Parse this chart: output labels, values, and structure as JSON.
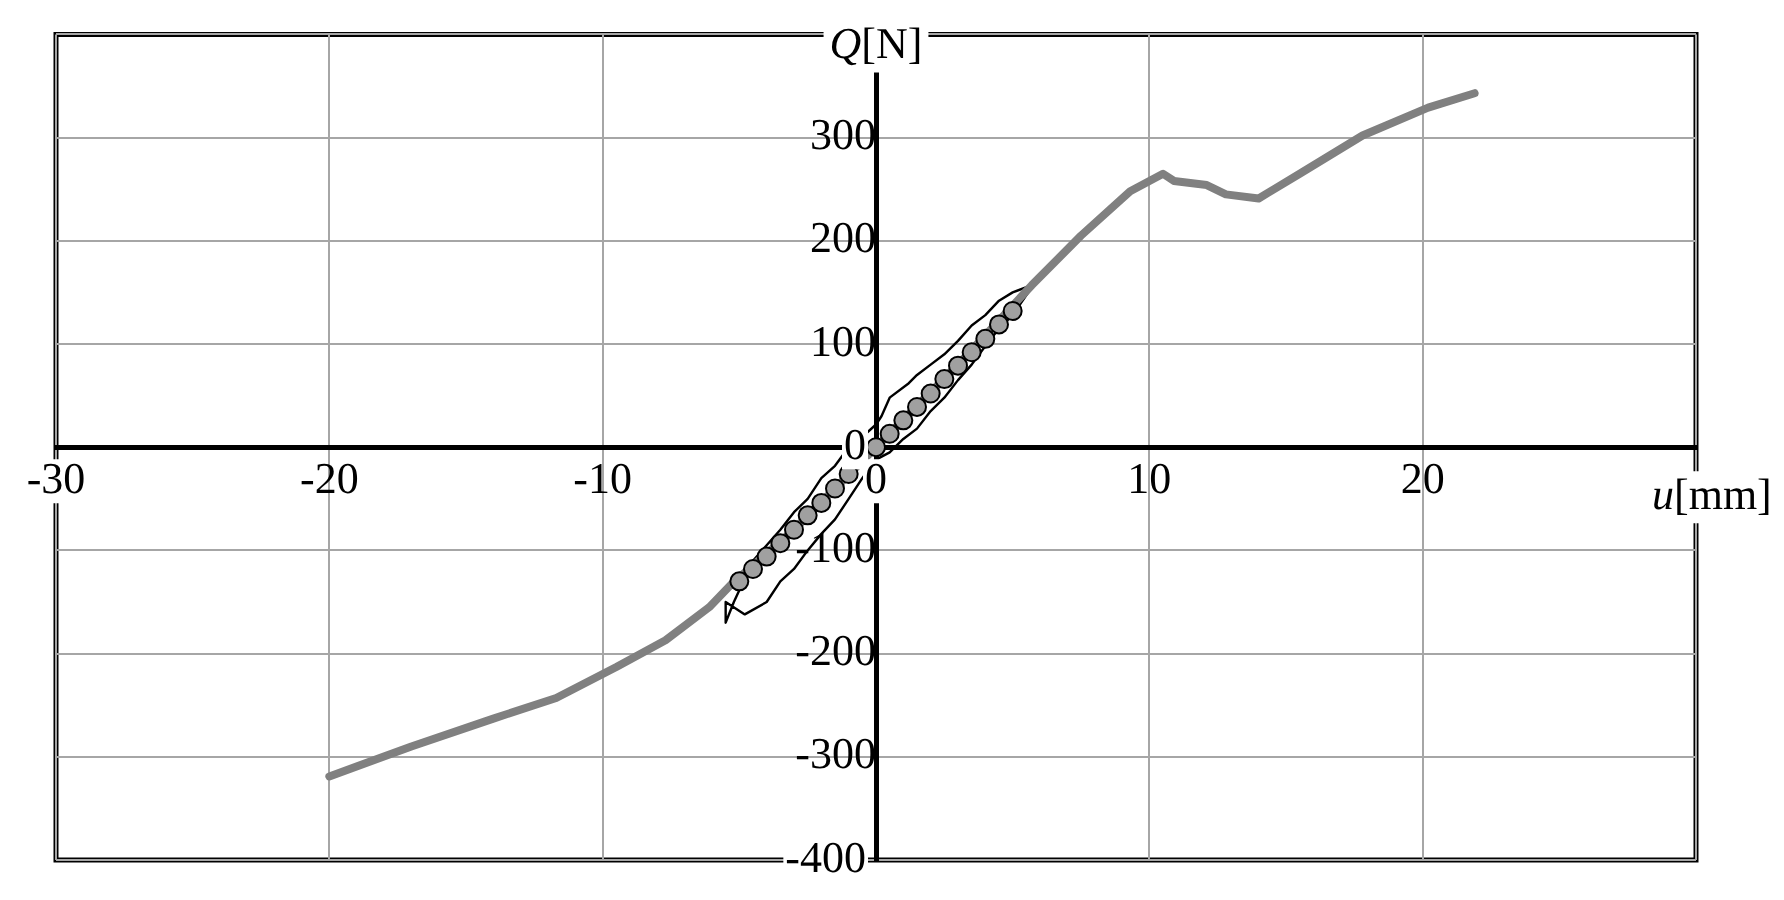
{
  "chart_data": {
    "type": "line",
    "xlabel": "u[mm]",
    "ylabel": "Q[N]",
    "xlim": [
      -30,
      30
    ],
    "xticks": [
      -30,
      -20,
      -10,
      0,
      10,
      20,
      {
        "value": 30,
        "label": null
      }
    ],
    "ylim": [
      -400,
      400
    ],
    "yticks": [
      -400,
      -300,
      -200,
      -100,
      0,
      100,
      200,
      300,
      {
        "value": 400,
        "label": null
      }
    ],
    "grid": true,
    "legend": false,
    "marker": "none",
    "line_style": "solid",
    "series": [
      {
        "type": "line",
        "color": "#808080",
        "x": [
          -20,
          -17,
          -14,
          -11.7,
          -9.5,
          -7.7,
          -6.1,
          -5.3,
          -3,
          0,
          3,
          5.7,
          7.5,
          9.3,
          10.5,
          10.9,
          12.1,
          12.8,
          14,
          15.5,
          17.8,
          20.2,
          21.9
        ],
        "values": [
          -319,
          -290,
          -263,
          -243,
          -213,
          -187,
          -155,
          -133,
          -80,
          0,
          80,
          157,
          205,
          248,
          265,
          258,
          254,
          245,
          241,
          265,
          302,
          329,
          343
        ]
      },
      {
        "type": "line",
        "color": "#000000",
        "x": [
          5.7,
          5,
          4.5,
          4,
          3.5,
          3,
          2.5,
          2,
          1.5,
          1.2,
          0.5,
          0.2,
          0,
          -0.5,
          -1,
          -1.5,
          -2,
          -2.5,
          -3,
          -3.5,
          -4,
          -4.5,
          -5.2,
          -5.5,
          -5.5,
          -4.8,
          -4,
          -3.5,
          -3,
          -2.5,
          -2,
          -1.5,
          -1,
          -0.5,
          0,
          0.5,
          1,
          1.5,
          2,
          2.5,
          3,
          3.5,
          4,
          4.5,
          5,
          5.7
        ],
        "values": [
          157,
          150,
          142,
          128,
          118,
          103,
          90,
          80,
          70,
          62,
          48,
          30,
          22,
          10,
          0,
          -18,
          -30,
          -50,
          -63,
          -80,
          -95,
          -110,
          -150,
          -170,
          -150,
          -162,
          -150,
          -130,
          -118,
          -100,
          -84,
          -70,
          -50,
          -30,
          -12,
          -5,
          8,
          18,
          35,
          48,
          65,
          80,
          98,
          115,
          128,
          155
        ]
      },
      {
        "type": "scatter",
        "color": "#a0a0a0",
        "marker": "circle",
        "x": [
          -5,
          -4.5,
          -4,
          -3.5,
          -3,
          -2.5,
          -2,
          -1.5,
          -1,
          -0.5,
          0,
          0.5,
          1,
          1.5,
          2,
          2.5,
          3,
          3.5,
          4,
          4.5,
          5
        ],
        "values": [
          -130,
          -118,
          -106,
          -93,
          -80,
          -66,
          -54,
          -40,
          -26,
          null,
          0,
          13,
          26,
          39,
          52,
          66,
          79,
          92,
          105,
          119,
          132
        ]
      }
    ]
  }
}
